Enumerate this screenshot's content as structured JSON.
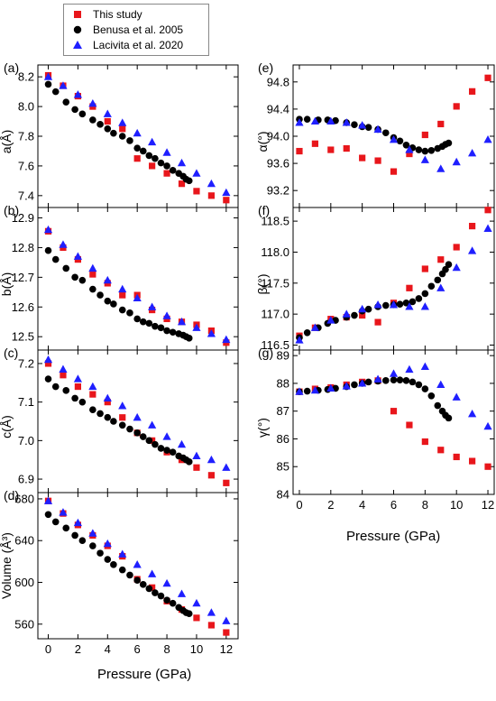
{
  "legend": [
    {
      "name": "This study",
      "marker": "square",
      "color": "#e8161b"
    },
    {
      "name": "Benusa et al. 2005",
      "marker": "circle",
      "color": "#000000"
    },
    {
      "name": "Lacivita et al. 2020",
      "marker": "triangle",
      "color": "#1f1fff"
    }
  ],
  "x_axis_title": "Pressure (GPa)",
  "chart_data": [
    {
      "type": "scatter",
      "panel": "(a)",
      "ylabel": "a(Å)",
      "xlim": [
        -0.7,
        12.8
      ],
      "ylim": [
        7.32,
        8.28
      ],
      "xticks": [
        0,
        2,
        4,
        6,
        8,
        10,
        12
      ],
      "xtick_labels_shown": false,
      "yticks": [
        7.4,
        7.6,
        7.8,
        8.0,
        8.2
      ],
      "ytick_labels": [
        "7.4",
        "7.6",
        "7.8",
        "8.0",
        "8.2"
      ],
      "series": [
        {
          "name": "This study",
          "x": [
            0,
            1,
            2,
            3,
            4,
            5,
            6,
            7,
            8,
            9,
            10,
            11,
            12
          ],
          "y": [
            8.21,
            8.14,
            8.07,
            8.0,
            7.9,
            7.85,
            7.65,
            7.6,
            7.55,
            7.48,
            7.43,
            7.4,
            7.37
          ]
        },
        {
          "name": "Benusa et al. 2005",
          "x": [
            0,
            0.5,
            1.2,
            1.8,
            2.3,
            3.0,
            3.5,
            4.0,
            4.4,
            5.0,
            5.5,
            6.0,
            6.4,
            6.8,
            7.2,
            7.6,
            8.0,
            8.4,
            8.8,
            9.1,
            9.3,
            9.5
          ],
          "y": [
            8.15,
            8.1,
            8.03,
            7.98,
            7.95,
            7.91,
            7.88,
            7.85,
            7.82,
            7.8,
            7.77,
            7.72,
            7.7,
            7.67,
            7.65,
            7.62,
            7.6,
            7.57,
            7.55,
            7.53,
            7.51,
            7.5
          ]
        },
        {
          "name": "Lacivita et al. 2020",
          "x": [
            0,
            1,
            2,
            3,
            4,
            5,
            6,
            7,
            8,
            9,
            10,
            11,
            12
          ],
          "y": [
            8.2,
            8.14,
            8.08,
            8.02,
            7.95,
            7.89,
            7.82,
            7.76,
            7.69,
            7.62,
            7.55,
            7.48,
            7.42
          ]
        }
      ]
    },
    {
      "type": "scatter",
      "panel": "(b)",
      "ylabel": "b(Å)",
      "xlim": [
        -0.7,
        12.8
      ],
      "ylim": [
        12.455,
        12.935
      ],
      "xticks": [
        0,
        2,
        4,
        6,
        8,
        10,
        12
      ],
      "xtick_labels_shown": false,
      "yticks": [
        12.5,
        12.6,
        12.7,
        12.8,
        12.9
      ],
      "ytick_labels": [
        "12.5",
        "12.6",
        "12.7",
        "12.8",
        "12.9"
      ],
      "series": [
        {
          "name": "This study",
          "x": [
            0,
            1,
            2,
            3,
            4,
            5,
            6,
            7,
            8,
            9,
            10,
            11,
            12
          ],
          "y": [
            12.855,
            12.8,
            12.76,
            12.71,
            12.68,
            12.64,
            12.64,
            12.59,
            12.56,
            12.55,
            12.54,
            12.52,
            12.48
          ]
        },
        {
          "name": "Benusa et al. 2005",
          "x": [
            0,
            0.5,
            1.2,
            1.8,
            2.3,
            3.0,
            3.5,
            4.0,
            4.4,
            5.0,
            5.5,
            6.0,
            6.4,
            6.8,
            7.2,
            7.6,
            8.0,
            8.4,
            8.8,
            9.1,
            9.3,
            9.5
          ],
          "y": [
            12.79,
            12.76,
            12.73,
            12.7,
            12.69,
            12.66,
            12.64,
            12.62,
            12.61,
            12.59,
            12.58,
            12.56,
            12.55,
            12.545,
            12.535,
            12.53,
            12.52,
            12.515,
            12.51,
            12.505,
            12.5,
            12.495
          ]
        },
        {
          "name": "Lacivita et al. 2020",
          "x": [
            0,
            1,
            2,
            3,
            4,
            5,
            6,
            7,
            8,
            9,
            10,
            11,
            12
          ],
          "y": [
            12.86,
            12.81,
            12.77,
            12.73,
            12.69,
            12.66,
            12.63,
            12.6,
            12.57,
            12.55,
            12.53,
            12.51,
            12.49
          ]
        }
      ]
    },
    {
      "type": "scatter",
      "panel": "(c)",
      "ylabel": "c(Å)",
      "xlim": [
        -0.7,
        12.8
      ],
      "ylim": [
        6.865,
        7.235
      ],
      "xticks": [
        0,
        2,
        4,
        6,
        8,
        10,
        12
      ],
      "xtick_labels_shown": false,
      "yticks": [
        6.9,
        7.0,
        7.1,
        7.2
      ],
      "ytick_labels": [
        "6.9",
        "7.0",
        "7.1",
        "7.2"
      ],
      "series": [
        {
          "name": "This study",
          "x": [
            0,
            1,
            2,
            3,
            4,
            5,
            6,
            7,
            8,
            9,
            10,
            11,
            12
          ],
          "y": [
            7.2,
            7.17,
            7.14,
            7.12,
            7.1,
            7.06,
            7.02,
            7.0,
            6.97,
            6.95,
            6.93,
            6.91,
            6.89
          ]
        },
        {
          "name": "Benusa et al. 2005",
          "x": [
            0,
            0.5,
            1.2,
            1.8,
            2.3,
            3.0,
            3.5,
            4.0,
            4.4,
            5.0,
            5.5,
            6.0,
            6.4,
            6.8,
            7.2,
            7.6,
            8.0,
            8.4,
            8.8,
            9.1,
            9.3,
            9.5
          ],
          "y": [
            7.16,
            7.14,
            7.13,
            7.11,
            7.1,
            7.08,
            7.07,
            7.06,
            7.05,
            7.04,
            7.03,
            7.02,
            7.01,
            7.0,
            6.99,
            6.98,
            6.975,
            6.97,
            6.96,
            6.955,
            6.95,
            6.945
          ]
        },
        {
          "name": "Lacivita et al. 2020",
          "x": [
            0,
            1,
            2,
            3,
            4,
            5,
            6,
            7,
            8,
            9,
            10,
            11,
            12
          ],
          "y": [
            7.21,
            7.185,
            7.16,
            7.14,
            7.11,
            7.09,
            7.06,
            7.04,
            7.01,
            6.99,
            6.96,
            6.95,
            6.93
          ]
        }
      ]
    },
    {
      "type": "scatter",
      "panel": "(d)",
      "ylabel": "Volume (Å³)",
      "xlim": [
        -0.7,
        12.8
      ],
      "ylim": [
        546,
        686
      ],
      "xticks": [
        0,
        2,
        4,
        6,
        8,
        10,
        12
      ],
      "xtick_labels": [
        "0",
        "2",
        "4",
        "6",
        "8",
        "10",
        "12"
      ],
      "yticks": [
        560,
        600,
        640,
        680
      ],
      "ytick_labels": [
        "560",
        "600",
        "640",
        "680"
      ],
      "series": [
        {
          "name": "This study",
          "x": [
            0,
            1,
            2,
            3,
            4,
            5,
            6,
            7,
            8,
            9,
            10,
            11,
            12
          ],
          "y": [
            678,
            666,
            655,
            645,
            635,
            625,
            603,
            595,
            582,
            574,
            566,
            559,
            552
          ]
        },
        {
          "name": "Benusa et al. 2005",
          "x": [
            0,
            0.5,
            1.2,
            1.8,
            2.3,
            3.0,
            3.5,
            4.0,
            4.4,
            5.0,
            5.5,
            6.0,
            6.4,
            6.8,
            7.2,
            7.6,
            8.0,
            8.4,
            8.8,
            9.1,
            9.3,
            9.5
          ],
          "y": [
            665,
            658,
            652,
            645,
            640,
            635,
            628,
            622,
            617,
            612,
            607,
            602,
            598,
            594,
            590,
            587,
            583,
            580,
            576,
            573,
            571,
            570
          ]
        },
        {
          "name": "Lacivita et al. 2020",
          "x": [
            0,
            1,
            2,
            3,
            4,
            5,
            6,
            7,
            8,
            9,
            10,
            11,
            12
          ],
          "y": [
            678,
            667,
            657,
            647,
            637,
            627,
            617,
            608,
            599,
            589,
            580,
            571,
            563
          ]
        }
      ]
    },
    {
      "type": "scatter",
      "panel": "(e)",
      "ylabel": "α(°)",
      "xlim": [
        -0.4,
        12.4
      ],
      "ylim": [
        92.95,
        95.05
      ],
      "xticks": [
        0,
        2,
        4,
        6,
        8,
        10,
        12
      ],
      "xtick_labels_shown": false,
      "yticks": [
        93.2,
        93.6,
        94.0,
        94.4,
        94.8
      ],
      "ytick_labels": [
        "93.2",
        "93.6",
        "94.0",
        "94.4",
        "94.8"
      ],
      "series": [
        {
          "name": "This study",
          "x": [
            0,
            1,
            2,
            3,
            4,
            5,
            6,
            7,
            8,
            9,
            10,
            11,
            12
          ],
          "y": [
            93.78,
            93.89,
            93.8,
            93.82,
            93.68,
            93.64,
            93.48,
            93.74,
            94.02,
            94.18,
            94.44,
            94.66,
            94.86
          ]
        },
        {
          "name": "Benusa et al. 2005",
          "x": [
            0,
            0.5,
            1.2,
            1.8,
            2.3,
            3.0,
            3.5,
            4.0,
            4.4,
            5.0,
            5.5,
            6.0,
            6.4,
            6.8,
            7.2,
            7.6,
            8.0,
            8.4,
            8.8,
            9.1,
            9.3,
            9.5
          ],
          "y": [
            94.25,
            94.25,
            94.24,
            94.24,
            94.23,
            94.2,
            94.17,
            94.14,
            94.13,
            94.1,
            94.05,
            93.98,
            93.93,
            93.87,
            93.83,
            93.8,
            93.78,
            93.79,
            93.82,
            93.85,
            93.88,
            93.9
          ]
        },
        {
          "name": "Lacivita et al. 2020",
          "x": [
            0,
            1,
            2,
            3,
            4,
            5,
            6,
            7,
            8,
            9,
            10,
            11,
            12
          ],
          "y": [
            94.2,
            94.22,
            94.22,
            94.2,
            94.16,
            94.1,
            93.95,
            93.8,
            93.65,
            93.52,
            93.62,
            93.75,
            93.95
          ]
        }
      ]
    },
    {
      "type": "scatter",
      "panel": "(f)",
      "ylabel": "β(°)",
      "xlim": [
        -0.4,
        12.4
      ],
      "ylim": [
        116.42,
        118.72
      ],
      "xticks": [
        0,
        2,
        4,
        6,
        8,
        10,
        12
      ],
      "xtick_labels_shown": false,
      "yticks": [
        116.5,
        117.0,
        117.5,
        118.0,
        118.5
      ],
      "ytick_labels": [
        "116.5",
        "117.0",
        "117.5",
        "118.0",
        "118.5"
      ],
      "series": [
        {
          "name": "This study",
          "x": [
            0,
            1,
            2,
            3,
            4,
            5,
            6,
            7,
            8,
            9,
            10,
            11,
            12
          ],
          "y": [
            116.65,
            116.78,
            116.92,
            116.95,
            116.98,
            116.87,
            117.18,
            117.42,
            117.73,
            117.88,
            118.08,
            118.42,
            118.68
          ]
        },
        {
          "name": "Benusa et al. 2005",
          "x": [
            0,
            0.5,
            1.2,
            1.8,
            2.3,
            3.0,
            3.5,
            4.0,
            4.4,
            5.0,
            5.5,
            6.0,
            6.4,
            6.8,
            7.2,
            7.6,
            8.0,
            8.4,
            8.8,
            9.1,
            9.3,
            9.5
          ],
          "y": [
            116.62,
            116.7,
            116.78,
            116.85,
            116.9,
            116.95,
            116.98,
            117.05,
            117.08,
            117.12,
            117.14,
            117.15,
            117.16,
            117.18,
            117.2,
            117.25,
            117.33,
            117.45,
            117.55,
            117.65,
            117.72,
            117.8
          ]
        },
        {
          "name": "Lacivita et al. 2020",
          "x": [
            0,
            1,
            2,
            3,
            4,
            5,
            6,
            7,
            8,
            9,
            10,
            11,
            12
          ],
          "y": [
            116.58,
            116.78,
            116.9,
            117.0,
            117.08,
            117.15,
            117.15,
            117.12,
            117.12,
            117.42,
            117.75,
            118.02,
            118.38
          ]
        }
      ]
    },
    {
      "type": "scatter",
      "panel": "(g)",
      "ylabel": "γ(°)",
      "xlim": [
        -0.4,
        12.4
      ],
      "ylim": [
        84.0,
        89.2
      ],
      "xticks": [
        0,
        2,
        4,
        6,
        8,
        10,
        12
      ],
      "xtick_labels": [
        "0",
        "2",
        "4",
        "6",
        "8",
        "10",
        "12"
      ],
      "yticks": [
        84,
        85,
        86,
        87,
        88,
        89
      ],
      "ytick_labels": [
        "84",
        "85",
        "86",
        "87",
        "88",
        "89"
      ],
      "series": [
        {
          "name": "This study",
          "x": [
            0,
            1,
            2,
            3,
            4,
            5,
            6,
            7,
            8,
            9,
            10,
            11,
            12
          ],
          "y": [
            87.7,
            87.8,
            87.85,
            87.95,
            88.05,
            88.1,
            87.0,
            86.5,
            85.9,
            85.6,
            85.35,
            85.2,
            85.0
          ]
        },
        {
          "name": "Benusa et al. 2005",
          "x": [
            0,
            0.5,
            1.2,
            1.8,
            2.3,
            3.0,
            3.5,
            4.0,
            4.4,
            5.0,
            5.5,
            6.0,
            6.4,
            6.8,
            7.2,
            7.6,
            8.0,
            8.4,
            8.8,
            9.1,
            9.3,
            9.5
          ],
          "y": [
            87.7,
            87.72,
            87.75,
            87.78,
            87.82,
            87.88,
            87.95,
            88.0,
            88.05,
            88.08,
            88.1,
            88.12,
            88.12,
            88.1,
            88.05,
            87.95,
            87.8,
            87.55,
            87.2,
            87.0,
            86.85,
            86.75
          ]
        },
        {
          "name": "Lacivita et al. 2020",
          "x": [
            0,
            1,
            2,
            3,
            4,
            5,
            6,
            7,
            8,
            9,
            10,
            11,
            12
          ],
          "y": [
            87.7,
            87.75,
            87.82,
            87.9,
            88.0,
            88.15,
            88.35,
            88.5,
            88.6,
            87.95,
            87.5,
            86.9,
            86.45
          ]
        }
      ]
    }
  ]
}
